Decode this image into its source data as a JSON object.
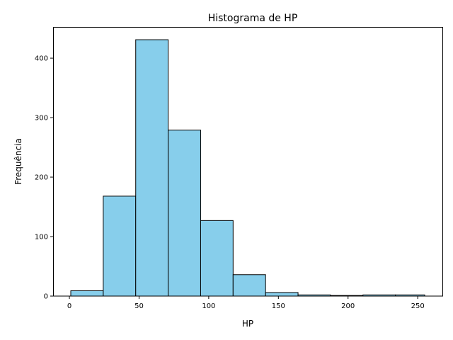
{
  "chart_data": {
    "type": "bar",
    "title": "Histograma de HP",
    "xlabel": "HP",
    "ylabel": "Frequência",
    "bins": [
      {
        "start": 1,
        "end": 24.3,
        "count": 9
      },
      {
        "start": 24.3,
        "end": 47.6,
        "count": 168
      },
      {
        "start": 47.6,
        "end": 70.9,
        "count": 431
      },
      {
        "start": 70.9,
        "end": 94.2,
        "count": 279
      },
      {
        "start": 94.2,
        "end": 117.5,
        "count": 127
      },
      {
        "start": 117.5,
        "end": 140.8,
        "count": 36
      },
      {
        "start": 140.8,
        "end": 164.1,
        "count": 6
      },
      {
        "start": 164.1,
        "end": 187.4,
        "count": 2
      },
      {
        "start": 187.4,
        "end": 210.7,
        "count": 1
      },
      {
        "start": 210.7,
        "end": 234,
        "count": 2
      },
      {
        "start": 234,
        "end": 255,
        "count": 2
      }
    ],
    "xlim": [
      -11.7,
      267.7
    ],
    "ylim": [
      0,
      452.5
    ],
    "x_ticks": [
      0,
      50,
      100,
      150,
      200,
      250
    ],
    "y_ticks": [
      0,
      100,
      200,
      300,
      400
    ],
    "bar_color": "#87ceeb",
    "edge_color": "#000000",
    "grid": false
  }
}
